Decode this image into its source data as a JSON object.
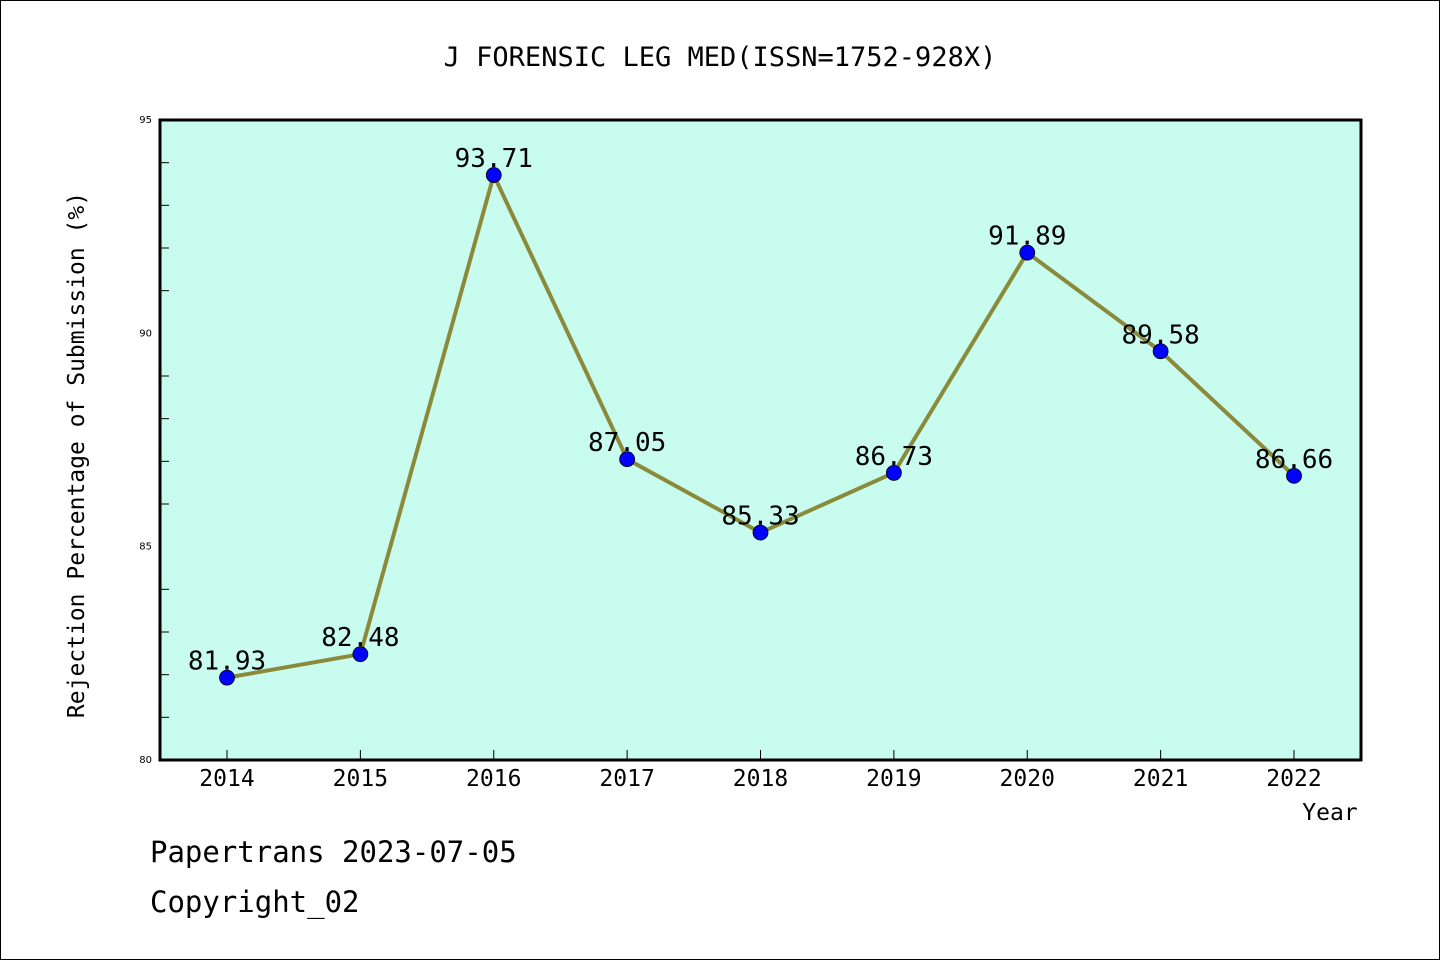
{
  "chart_data": {
    "type": "line",
    "title": "J FORENSIC LEG MED(ISSN=1752-928X)",
    "xlabel": "Year",
    "ylabel": "Rejection Percentage of Submission (%)",
    "categories": [
      "2014",
      "2015",
      "2016",
      "2017",
      "2018",
      "2019",
      "2020",
      "2021",
      "2022"
    ],
    "series": [
      {
        "values": [
          81.93,
          82.48,
          93.71,
          87.05,
          85.33,
          86.73,
          91.89,
          89.58,
          86.66
        ],
        "data_labels": [
          "81.93",
          "82.48",
          "93.71",
          "87.05",
          "85.33",
          "86.73",
          "91.89",
          "89.58",
          "86.66"
        ]
      }
    ],
    "ylim": [
      80,
      95
    ],
    "yticks": [
      80,
      85,
      90,
      95
    ],
    "ytick_labels": [
      "80",
      "85",
      "90",
      "95"
    ],
    "minor_ytick_step": 1,
    "grid": false,
    "colors": {
      "plot_background": "#c8fcee",
      "line": "#8b8a3a",
      "marker": "#0000ff"
    }
  },
  "footer": {
    "line1": "Papertrans 2023-07-05",
    "line2": "Copyright_02"
  }
}
